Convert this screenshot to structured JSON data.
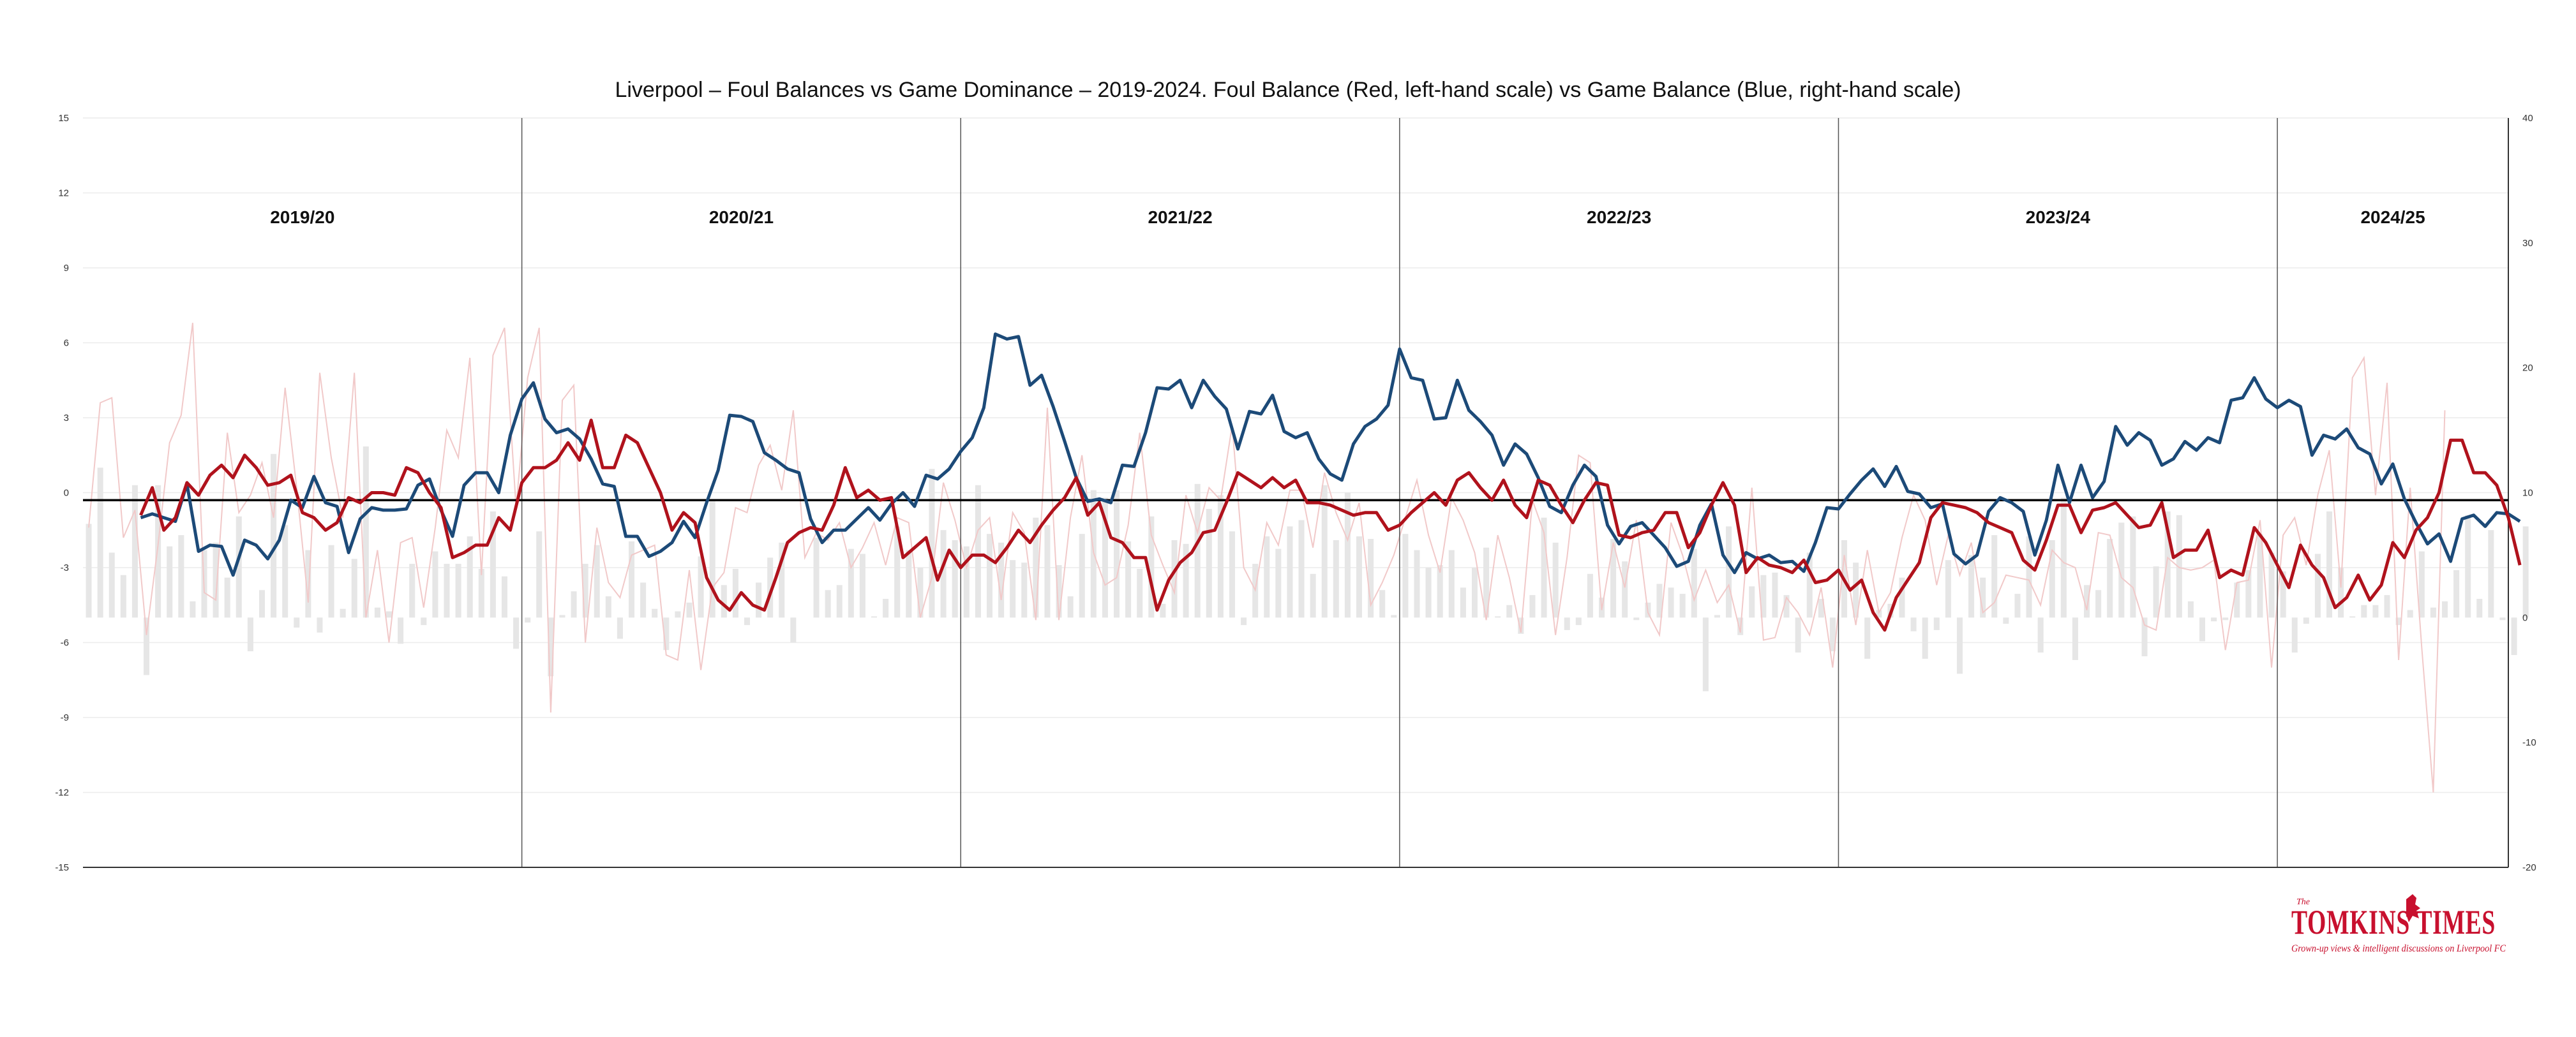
{
  "chart_data": {
    "type": "line",
    "title": "Liverpool – Foul Balances vs Game Dominance – 2019-2024. Foul Balance (Red, left-hand scale) vs Game Balance (Blue, right-hand scale)",
    "xlabel": "",
    "ylabel_left": "",
    "ylabel_right": "",
    "left_axis": {
      "range": [
        -15,
        15
      ],
      "ticks": [
        15,
        12,
        9,
        6,
        3,
        0,
        -3,
        -6,
        -9,
        -12,
        -15
      ]
    },
    "right_axis": {
      "range": [
        -20,
        40
      ],
      "ticks": [
        40,
        30,
        20,
        10,
        0,
        -10,
        -20
      ]
    },
    "reference_line_y_left": -0.3,
    "grid": true,
    "seasons": [
      {
        "label": "2019/20",
        "start_match": 0
      },
      {
        "label": "2020/21",
        "start_match": 38
      },
      {
        "label": "2021/22",
        "start_match": 76
      },
      {
        "label": "2022/23",
        "start_match": 114
      },
      {
        "label": "2023/24",
        "start_match": 152
      },
      {
        "label": "2024/25",
        "start_match": 190
      }
    ],
    "total_matches": 210,
    "colors": {
      "foul": "#b0121c",
      "game": "#1c4a78",
      "bars": "#e6e6e6",
      "foul_raw": "#f1c9c9"
    },
    "series": [
      {
        "key": "foul_balance",
        "axis": "left",
        "smoothed": [
          -0.9,
          0.2,
          -1.5,
          -1.0,
          0.4,
          -0.1,
          0.7,
          1.1,
          0.6,
          1.5,
          1.0,
          0.3,
          0.4,
          0.7,
          -0.8,
          -1.0,
          -1.5,
          -1.2,
          -0.2,
          -0.4,
          0.0,
          0.0,
          -0.1,
          1.0,
          0.8,
          0.0,
          -0.6,
          -2.6,
          -2.4,
          -2.1,
          -2.1,
          -1.0,
          -1.5,
          0.4,
          1.0,
          1.0,
          1.3,
          2.0,
          1.3,
          2.9,
          1.0,
          1.0,
          2.3,
          2.0,
          1.0,
          0.0,
          -1.5,
          -0.8,
          -1.2,
          -3.4,
          -4.3,
          -4.7,
          -4.0,
          -4.5,
          -4.7,
          -3.4,
          -2.0,
          -1.6,
          -1.4,
          -1.5,
          -0.5,
          1.0,
          -0.2,
          0.1,
          -0.3,
          -0.2,
          -2.6,
          -2.2,
          -1.8,
          -3.5,
          -2.3,
          -3.0,
          -2.5,
          -2.5,
          -2.8,
          -2.2,
          -1.5,
          -2.0,
          -1.3,
          -0.7,
          -0.2,
          0.6,
          -0.9,
          -0.4,
          -1.8,
          -2.0,
          -2.6,
          -2.6,
          -4.7,
          -3.5,
          -2.8,
          -2.4,
          -1.6,
          -1.5,
          -0.4,
          0.8,
          0.5,
          0.2,
          0.6,
          0.2,
          0.5,
          -0.4,
          -0.4,
          -0.5,
          -0.7,
          -0.9,
          -0.8,
          -0.8,
          -1.5,
          -1.3,
          -0.8,
          -0.4,
          0.0,
          -0.5,
          0.5,
          0.8,
          0.2,
          -0.3,
          0.5,
          -0.5,
          -1.0,
          0.5,
          0.3,
          -0.5,
          -1.2,
          -0.3,
          0.4,
          0.3,
          -1.7,
          -1.8,
          -1.6,
          -1.5,
          -0.8,
          -0.8,
          -2.2,
          -1.6,
          -0.5,
          0.4,
          -0.5,
          -3.2,
          -2.6,
          -2.9,
          -3.0,
          -3.2,
          -2.7,
          -3.6,
          -3.5,
          -3.1,
          -3.9,
          -3.5,
          -4.8,
          -5.5,
          -4.2,
          -3.5,
          -2.8,
          -1.0,
          -0.4,
          -0.5,
          -0.6,
          -0.8,
          -1.2,
          -1.4,
          -1.6,
          -2.7,
          -3.1,
          -1.9,
          -0.5,
          -0.5,
          -1.6,
          -0.7,
          -0.6,
          -0.4,
          -0.9,
          -1.4,
          -1.3,
          -0.4,
          -2.6,
          -2.3,
          -2.3,
          -1.5,
          -3.4,
          -3.1,
          -3.3,
          -1.4,
          -2.0,
          -2.9,
          -3.8,
          -2.1,
          -2.9,
          -3.4,
          -4.6,
          -4.2,
          -3.3,
          -4.3,
          -3.7,
          -2.0,
          -2.6,
          -1.5,
          -1.0,
          0.0,
          2.1,
          2.1,
          0.8,
          0.8,
          0.3,
          -1.0,
          -2.9
        ]
      },
      {
        "key": "game_balance",
        "axis": "right",
        "smoothed": [
          8.0,
          8.3,
          8.0,
          7.7,
          10.7,
          5.3,
          5.8,
          5.7,
          3.4,
          6.2,
          5.8,
          4.7,
          6.2,
          9.4,
          8.8,
          11.3,
          9.2,
          8.9,
          5.2,
          7.9,
          8.8,
          8.6,
          8.6,
          8.7,
          10.6,
          11.1,
          8.6,
          6.5,
          10.6,
          11.6,
          11.6,
          10.0,
          14.6,
          17.5,
          18.8,
          15.9,
          14.8,
          15.1,
          14.3,
          12.7,
          10.7,
          10.5,
          6.5,
          6.5,
          4.9,
          5.3,
          6.0,
          7.7,
          6.4,
          9.2,
          11.8,
          16.2,
          16.1,
          15.7,
          13.2,
          12.6,
          11.9,
          11.6,
          7.9,
          6.0,
          7.0,
          7.0,
          7.9,
          8.8,
          7.8,
          9.1,
          10.0,
          8.9,
          11.4,
          11.1,
          11.9,
          13.3,
          14.4,
          16.8,
          22.7,
          22.3,
          22.5,
          18.6,
          19.4,
          16.9,
          14.1,
          11.2,
          9.3,
          9.5,
          9.2,
          12.2,
          12.1,
          14.8,
          18.4,
          18.3,
          19.0,
          16.8,
          19.0,
          17.7,
          16.7,
          13.5,
          16.5,
          16.3,
          17.8,
          14.9,
          14.4,
          14.8,
          12.7,
          11.5,
          11.0,
          13.9,
          15.3,
          15.9,
          17.0,
          21.5,
          19.2,
          19.0,
          15.9,
          16.0,
          19.0,
          16.6,
          15.7,
          14.6,
          12.2,
          13.9,
          13.1,
          11.2,
          8.9,
          8.4,
          10.6,
          12.2,
          11.3,
          7.4,
          5.9,
          7.3,
          7.6,
          6.6,
          5.6,
          4.1,
          4.5,
          7.4,
          9.1,
          5.0,
          3.6,
          5.2,
          4.7,
          5.0,
          4.4,
          4.5,
          3.7,
          6.0,
          8.8,
          8.7,
          9.9,
          11.0,
          11.9,
          10.5,
          12.1,
          10.1,
          9.9,
          8.8,
          9.1,
          5.1,
          4.3,
          5.0,
          8.5,
          9.6,
          9.2,
          8.5,
          5.0,
          7.8,
          12.2,
          9.2,
          12.2,
          9.6,
          10.9,
          15.3,
          13.8,
          14.8,
          14.2,
          12.2,
          12.7,
          14.1,
          13.4,
          14.4,
          14.0,
          17.4,
          17.6,
          19.2,
          17.5,
          16.8,
          17.4,
          16.9,
          13.0,
          14.6,
          14.3,
          15.1,
          13.6,
          13.1,
          10.7,
          12.3,
          9.5,
          7.6,
          5.9,
          6.7,
          4.5,
          7.9,
          8.2,
          7.3,
          8.4,
          8.3,
          7.7
        ]
      }
    ],
    "background_series": {
      "foul_balance_raw": [
        -1.4,
        3.6,
        3.8,
        -1.8,
        -0.7,
        -5.7,
        -2.1,
        2.0,
        3.1,
        6.8,
        -4.0,
        -4.3,
        2.4,
        -0.8,
        -0.1,
        1.2,
        -1.0,
        4.2,
        0.2,
        -4.4,
        4.8,
        1.4,
        -1.0,
        4.8,
        -5.0,
        -2.3,
        -6.0,
        -2.0,
        -1.8,
        -4.6,
        -1.4,
        2.5,
        1.4,
        5.4,
        -3.3,
        5.5,
        6.6,
        -0.6,
        4.6,
        6.6,
        -8.8,
        3.7,
        4.3,
        -6.0,
        -1.4,
        -3.6,
        -4.2,
        -2.5,
        -2.3,
        -2.1,
        -6.5,
        -6.7,
        -3.1,
        -7.1,
        -3.8,
        -3.2,
        -0.6,
        -0.8,
        1.1,
        1.9,
        0.1,
        3.3,
        -2.6,
        -1.6,
        -1.9,
        -1.2,
        -3.0,
        -2.2,
        -1.2,
        -2.9,
        -1.0,
        -1.2,
        -5.0,
        -3.4,
        0.4,
        -1.1,
        -3.0,
        -1.5,
        -1.0,
        -4.3,
        -0.8,
        -1.6,
        -5.1,
        3.4,
        -5.1,
        -1.0,
        1.5,
        -2.4,
        -3.7,
        -3.4,
        -1.3,
        2.4,
        -1.7,
        -2.9,
        -4.0,
        -0.1,
        -1.6,
        0.2,
        -0.3,
        2.7,
        -3.0,
        -3.9,
        -1.2,
        -2.1,
        0.1,
        0.1,
        -2.2,
        0.8,
        -0.8,
        -1.9,
        -0.4,
        -4.5,
        -3.6,
        -2.5,
        -1.0,
        0.5,
        -1.7,
        -3.2,
        -0.2,
        -1.1,
        -2.4,
        -5.1,
        -1.7,
        -3.4,
        -5.6,
        -0.3,
        -1.6,
        -5.7,
        -2.6,
        1.5,
        1.2,
        -4.7,
        -2.0,
        -3.8,
        -1.1,
        -4.8,
        -5.7,
        -1.2,
        -2.5,
        -4.3,
        -3.1,
        -4.4,
        -3.7,
        -5.6,
        0.2,
        -5.9,
        -5.8,
        -4.2,
        -4.8,
        -5.7,
        -3.8,
        -7.0,
        -2.5,
        -5.3,
        -2.3,
        -4.8,
        -4.0,
        -1.8,
        -0.1,
        -1.1,
        -3.7,
        -1.7,
        -3.3,
        -2.0,
        -4.8,
        -4.4,
        -3.3,
        -3.4,
        -3.5,
        -4.5,
        -2.3,
        -2.8,
        -3.0,
        -4.7,
        -1.6,
        -1.7,
        -3.4,
        -3.8,
        -5.3,
        -5.5,
        -2.6,
        -3.0,
        -3.1,
        -3.0,
        -2.7,
        -6.3,
        -3.6,
        -3.5,
        -1.1,
        -7.0,
        -1.7,
        -1.0,
        -2.9,
        -0.1,
        1.7,
        -3.8,
        4.6,
        5.4,
        -0.1,
        4.4,
        -6.7,
        0.2,
        -6.2,
        -12.0,
        3.3
      ],
      "game_balance_raw": [
        7.5,
        12.0,
        5.2,
        3.4,
        10.6,
        -4.6,
        10.6,
        5.7,
        6.6,
        1.3,
        5.4,
        6.0,
        3.2,
        8.1,
        -2.7,
        2.2,
        13.1,
        7.4,
        -0.8,
        5.4,
        -1.2,
        5.8,
        0.7,
        4.7,
        13.7,
        0.8,
        0.5,
        -2.1,
        4.3,
        -0.6,
        5.3,
        4.3,
        4.3,
        6.5,
        3.9,
        8.5,
        3.3,
        -2.5,
        -0.4,
        6.9,
        -4.7,
        0.2,
        2.1,
        4.3,
        5.8,
        1.7,
        -1.7,
        6.1,
        2.8,
        0.7,
        -2.6,
        0.5,
        1.2,
        4.9,
        9.3,
        2.6,
        3.9,
        -0.6,
        2.8,
        4.8,
        6.0,
        -2.0,
        0.0,
        6.4,
        2.2,
        2.6,
        5.5,
        5.1,
        0.1,
        1.5,
        7.3,
        5.4,
        4.0,
        11.9,
        7.0,
        6.2,
        5.7,
        10.6,
        6.7,
        6.0,
        4.6,
        4.4,
        8.0,
        7.4,
        4.2,
        1.7,
        6.7,
        10.2,
        9.6,
        10.2,
        6.1,
        3.9,
        8.1,
        1.1,
        6.2,
        5.9,
        10.7,
        8.7,
        9.8,
        6.9,
        -0.6,
        4.3,
        6.5,
        5.5,
        7.3,
        7.8,
        3.5,
        10.6,
        6.2,
        10.0,
        6.5,
        6.3,
        2.2,
        0.2,
        6.7,
        5.4,
        4.0,
        4.2,
        5.4,
        2.4,
        4.0,
        5.6,
        0.1,
        1.0,
        -1.3,
        1.8,
        8.0,
        6.0,
        -1.0,
        -0.6,
        3.5,
        1.6,
        6.3,
        4.5,
        -0.2,
        1.2,
        2.7,
        2.4,
        1.9,
        5.5,
        -5.9,
        0.2,
        7.3,
        -1.4,
        2.5,
        3.4,
        3.6,
        1.8,
        -2.8,
        5.2,
        1.5,
        -2.7,
        6.2,
        4.4,
        -3.3,
        0.6,
        1.1,
        3.2,
        -1.1,
        -3.3,
        -1.0,
        4.6,
        -4.5,
        5.0,
        3.2,
        6.6,
        -0.5,
        1.9,
        6.5,
        -2.8,
        6.2,
        9.6,
        -3.4,
        2.6,
        2.2,
        6.3,
        7.6,
        8.1,
        -3.1,
        4.1,
        8.5,
        8.2,
        1.3,
        -1.9,
        -0.3,
        -0.2,
        2.8,
        3.8,
        6.7,
        5.2,
        3.7,
        -2.8,
        -0.5,
        5.1,
        8.5,
        4.0,
        0.1,
        1.0,
        1.0,
        1.8,
        -0.6,
        0.6,
        5.3,
        0.8,
        1.3,
        3.8,
        8.2,
        1.5,
        7.0,
        -0.2,
        -3.0,
        7.3
      ]
    },
    "watermark": {
      "small_text": "The",
      "brand": "TOMKINS TIMES",
      "tagline": "Grown-up views & intelligent discussions on Liverpool FC"
    }
  }
}
